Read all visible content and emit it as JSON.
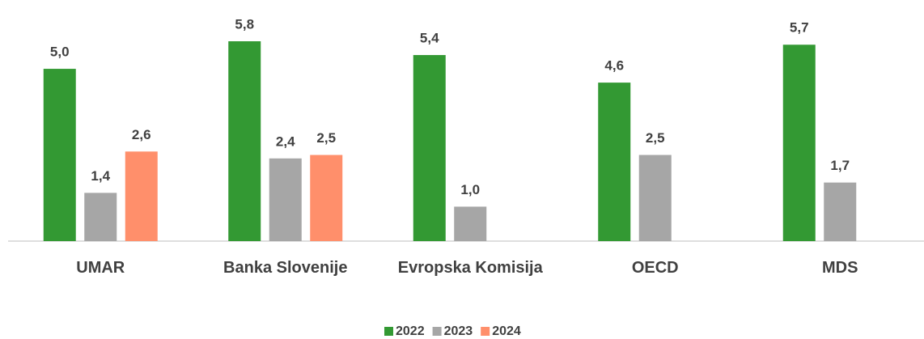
{
  "chart_data": {
    "type": "bar",
    "categories": [
      "UMAR",
      "Banka Slovenije",
      "Evropska Komisija",
      "OECD",
      "MDS"
    ],
    "series": [
      {
        "name": "2022",
        "color": "#339933",
        "values": [
          5.0,
          5.8,
          5.4,
          4.6,
          5.7
        ],
        "value_labels": [
          "5,0",
          "5,8",
          "5,4",
          "4,6",
          "5,7"
        ]
      },
      {
        "name": "2023",
        "color": "#a6a6a6",
        "values": [
          1.4,
          2.4,
          1.0,
          2.5,
          1.7
        ],
        "value_labels": [
          "1,4",
          "2,4",
          "1,0",
          "2,5",
          "1,7"
        ]
      },
      {
        "name": "2024",
        "color": "#ff8f6b",
        "values": [
          2.6,
          2.5,
          null,
          null,
          null
        ],
        "value_labels": [
          "2,6",
          "2,5",
          null,
          null,
          null
        ]
      }
    ],
    "legend": "bottom"
  }
}
